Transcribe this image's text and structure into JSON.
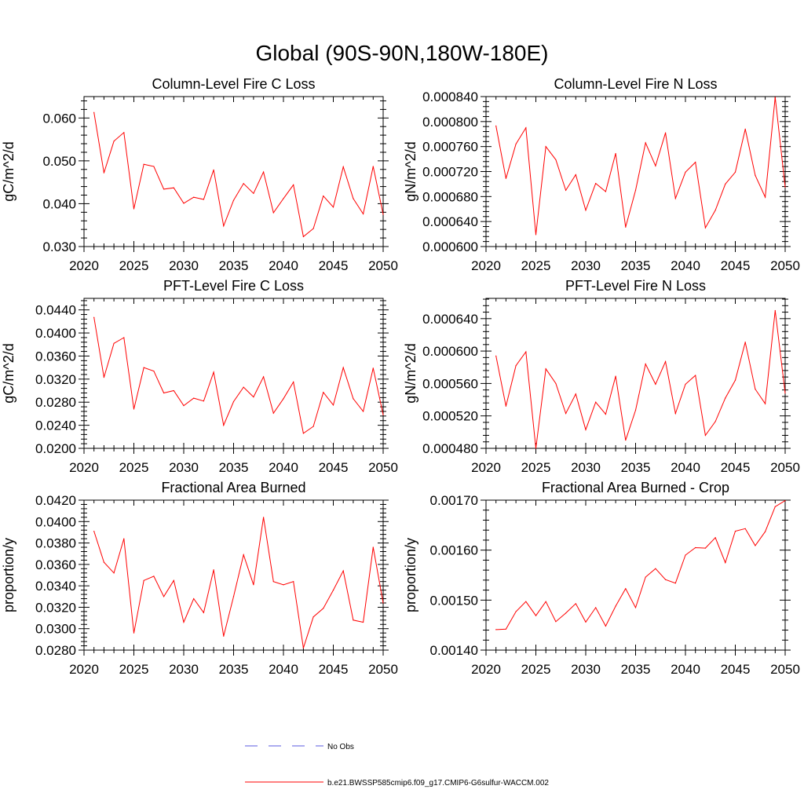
{
  "page": {
    "title": "Global (90S-90N,180W-180E)"
  },
  "legend": {
    "entries": [
      {
        "label": "No Obs",
        "color": "#5a5ae0",
        "style": "dashed"
      },
      {
        "label": "b.e21.BWSSP585cmip6.f09_g17.CMIP6-G6sulfur-WACCM.002",
        "color": "#ff0000",
        "style": "solid"
      }
    ]
  },
  "chart_data": [
    {
      "type": "line",
      "title": "Column-Level Fire C Loss",
      "ylabel": "gC/m^2/d",
      "xlabel": "",
      "xlim": [
        2020,
        2050
      ],
      "ylim": [
        0.03,
        0.065
      ],
      "x_ticks": [
        "2020",
        "2025",
        "2030",
        "2035",
        "2040",
        "2045",
        "2050"
      ],
      "y_ticks": [
        "0.030",
        "0.040",
        "0.050",
        "0.060"
      ],
      "y_tick_values": [
        0.03,
        0.04,
        0.05,
        0.06
      ],
      "grid": false,
      "x": [
        2021,
        2022,
        2023,
        2024,
        2025,
        2026,
        2027,
        2028,
        2029,
        2030,
        2031,
        2032,
        2033,
        2034,
        2035,
        2036,
        2037,
        2038,
        2039,
        2040,
        2041,
        2042,
        2043,
        2044,
        2045,
        2046,
        2047,
        2048,
        2049,
        2050
      ],
      "series": [
        {
          "values": [
            0.0613,
            0.0472,
            0.0546,
            0.0566,
            0.0388,
            0.0492,
            0.0487,
            0.0434,
            0.0437,
            0.0401,
            0.0415,
            0.041,
            0.0479,
            0.0348,
            0.0408,
            0.0447,
            0.0424,
            0.0474,
            0.0379,
            0.0412,
            0.0444,
            0.0323,
            0.0342,
            0.0418,
            0.0392,
            0.0486,
            0.0412,
            0.0376,
            0.0487,
            0.0375
          ],
          "color": "#ff0000"
        }
      ]
    },
    {
      "type": "line",
      "title": "Column-Level Fire N Loss",
      "ylabel": "gN/m^2/d",
      "xlabel": "",
      "xlim": [
        2020,
        2050
      ],
      "ylim": [
        0.0006,
        0.00084
      ],
      "x_ticks": [
        "2020",
        "2025",
        "2030",
        "2035",
        "2040",
        "2045",
        "2050"
      ],
      "y_ticks": [
        "0.000600",
        "0.000640",
        "0.000680",
        "0.000720",
        "0.000760",
        "0.000800",
        "0.000840"
      ],
      "y_tick_values": [
        0.0006,
        0.00064,
        0.00068,
        0.00072,
        0.00076,
        0.0008,
        0.00084
      ],
      "grid": false,
      "x": [
        2021,
        2022,
        2023,
        2024,
        2025,
        2026,
        2027,
        2028,
        2029,
        2030,
        2031,
        2032,
        2033,
        2034,
        2035,
        2036,
        2037,
        2038,
        2039,
        2040,
        2041,
        2042,
        2043,
        2044,
        2045,
        2046,
        2047,
        2048,
        2049,
        2050
      ],
      "series": [
        {
          "values": [
            0.000793,
            0.000709,
            0.000764,
            0.00079,
            0.000619,
            0.00076,
            0.000739,
            0.00069,
            0.000715,
            0.000658,
            0.000701,
            0.000688,
            0.000749,
            0.000631,
            0.00069,
            0.000766,
            0.000729,
            0.000782,
            0.000677,
            0.000719,
            0.000735,
            0.00063,
            0.000658,
            0.0007,
            0.000719,
            0.000788,
            0.000714,
            0.000679,
            0.000839,
            0.000695
          ],
          "color": "#ff0000"
        }
      ]
    },
    {
      "type": "line",
      "title": "PFT-Level Fire C Loss",
      "ylabel": "gC/m^2/d",
      "xlabel": "",
      "xlim": [
        2020,
        2050
      ],
      "ylim": [
        0.02,
        0.046
      ],
      "x_ticks": [
        "2020",
        "2025",
        "2030",
        "2035",
        "2040",
        "2045",
        "2050"
      ],
      "y_ticks": [
        "0.0200",
        "0.0240",
        "0.0280",
        "0.0320",
        "0.0360",
        "0.0400",
        "0.0440"
      ],
      "y_tick_values": [
        0.02,
        0.024,
        0.028,
        0.032,
        0.036,
        0.04,
        0.044
      ],
      "grid": false,
      "x": [
        2021,
        2022,
        2023,
        2024,
        2025,
        2026,
        2027,
        2028,
        2029,
        2030,
        2031,
        2032,
        2033,
        2034,
        2035,
        2036,
        2037,
        2038,
        2039,
        2040,
        2041,
        2042,
        2043,
        2044,
        2045,
        2046,
        2047,
        2048,
        2049,
        2050
      ],
      "series": [
        {
          "values": [
            0.0427,
            0.0323,
            0.0382,
            0.0392,
            0.0268,
            0.034,
            0.0334,
            0.0296,
            0.03,
            0.0274,
            0.0287,
            0.0282,
            0.0332,
            0.024,
            0.0281,
            0.0306,
            0.0289,
            0.0324,
            0.0261,
            0.0286,
            0.0315,
            0.0226,
            0.0238,
            0.0297,
            0.0275,
            0.034,
            0.0286,
            0.0264,
            0.0339,
            0.0258
          ],
          "color": "#ff0000"
        }
      ]
    },
    {
      "type": "line",
      "title": "PFT-Level Fire N Loss",
      "ylabel": "gN/m^2/d",
      "xlabel": "",
      "xlim": [
        2020,
        2050
      ],
      "ylim": [
        0.00048,
        0.000665
      ],
      "x_ticks": [
        "2020",
        "2025",
        "2030",
        "2035",
        "2040",
        "2045",
        "2050"
      ],
      "y_ticks": [
        "0.000480",
        "0.000520",
        "0.000560",
        "0.000600",
        "0.000640"
      ],
      "y_tick_values": [
        0.00048,
        0.00052,
        0.00056,
        0.0006,
        0.00064
      ],
      "grid": false,
      "x": [
        2021,
        2022,
        2023,
        2024,
        2025,
        2026,
        2027,
        2028,
        2029,
        2030,
        2031,
        2032,
        2033,
        2034,
        2035,
        2036,
        2037,
        2038,
        2039,
        2040,
        2041,
        2042,
        2043,
        2044,
        2045,
        2046,
        2047,
        2048,
        2049,
        2050
      ],
      "series": [
        {
          "values": [
            0.000594,
            0.000532,
            0.000582,
            0.000599,
            0.00048,
            0.000578,
            0.00056,
            0.000523,
            0.000547,
            0.000503,
            0.000537,
            0.000522,
            0.000569,
            0.00049,
            0.000527,
            0.000584,
            0.000559,
            0.000587,
            0.000523,
            0.000559,
            0.00057,
            0.000496,
            0.000513,
            0.000542,
            0.000564,
            0.000611,
            0.000553,
            0.000535,
            0.00065,
            0.000548
          ],
          "color": "#ff0000"
        }
      ]
    },
    {
      "type": "line",
      "title": "Fractional Area Burned",
      "ylabel": "proportion/y",
      "xlabel": "",
      "xlim": [
        2020,
        2050
      ],
      "ylim": [
        0.028,
        0.042
      ],
      "x_ticks": [
        "2020",
        "2025",
        "2030",
        "2035",
        "2040",
        "2045",
        "2050"
      ],
      "y_ticks": [
        "0.0280",
        "0.0300",
        "0.0320",
        "0.0340",
        "0.0360",
        "0.0380",
        "0.0400",
        "0.0420"
      ],
      "y_tick_values": [
        0.028,
        0.03,
        0.032,
        0.034,
        0.036,
        0.038,
        0.04,
        0.042
      ],
      "grid": false,
      "x": [
        2021,
        2022,
        2023,
        2024,
        2025,
        2026,
        2027,
        2028,
        2029,
        2030,
        2031,
        2032,
        2033,
        2034,
        2035,
        2036,
        2037,
        2038,
        2039,
        2040,
        2041,
        2042,
        2043,
        2044,
        2045,
        2046,
        2047,
        2048,
        2049,
        2050
      ],
      "series": [
        {
          "values": [
            0.0391,
            0.0362,
            0.0352,
            0.0384,
            0.0296,
            0.0345,
            0.0349,
            0.033,
            0.0345,
            0.0306,
            0.0328,
            0.0315,
            0.0355,
            0.0293,
            0.033,
            0.0369,
            0.0341,
            0.0404,
            0.0344,
            0.0341,
            0.0344,
            0.0282,
            0.0311,
            0.0319,
            0.0336,
            0.0354,
            0.0308,
            0.0306,
            0.0376,
            0.0324
          ],
          "color": "#ff0000"
        }
      ]
    },
    {
      "type": "line",
      "title": "Fractional Area Burned - Crop",
      "ylabel": "proportion/y",
      "xlabel": "",
      "xlim": [
        2020,
        2050
      ],
      "ylim": [
        0.0014,
        0.0017
      ],
      "x_ticks": [
        "2020",
        "2025",
        "2030",
        "2035",
        "2040",
        "2045",
        "2050"
      ],
      "y_ticks": [
        "0.00140",
        "0.00150",
        "0.00160",
        "0.00170"
      ],
      "y_tick_values": [
        0.0014,
        0.0015,
        0.0016,
        0.0017
      ],
      "grid": false,
      "x": [
        2021,
        2022,
        2023,
        2024,
        2025,
        2026,
        2027,
        2028,
        2029,
        2030,
        2031,
        2032,
        2033,
        2034,
        2035,
        2036,
        2037,
        2038,
        2039,
        2040,
        2041,
        2042,
        2043,
        2044,
        2045,
        2046,
        2047,
        2048,
        2049,
        2050
      ],
      "series": [
        {
          "values": [
            0.001441,
            0.001442,
            0.001477,
            0.001497,
            0.001469,
            0.001497,
            0.001457,
            0.001474,
            0.001493,
            0.001456,
            0.001485,
            0.001448,
            0.001488,
            0.001523,
            0.001485,
            0.001546,
            0.001563,
            0.001541,
            0.001534,
            0.00159,
            0.001605,
            0.001604,
            0.001625,
            0.001575,
            0.001638,
            0.001643,
            0.001609,
            0.001637,
            0.001687,
            0.001699
          ],
          "color": "#ff0000"
        }
      ]
    }
  ]
}
